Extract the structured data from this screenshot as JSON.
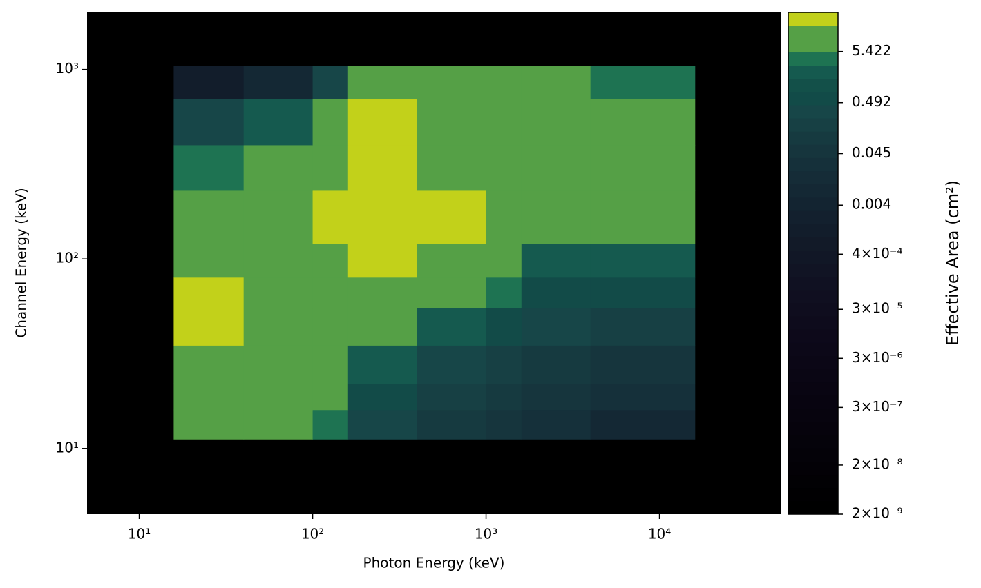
{
  "chart_data": {
    "type": "heatmap",
    "x_label": "Photon Energy (keV)",
    "y_label": "Channel Energy (keV)",
    "xscale": "log",
    "yscale": "log",
    "xlim": [
      5,
      50000
    ],
    "ylim": [
      4.5,
      2000
    ],
    "xticks": [
      {
        "value": 10,
        "label": "10¹"
      },
      {
        "value": 100,
        "label": "10²"
      },
      {
        "value": 1000,
        "label": "10³"
      },
      {
        "value": 10000,
        "label": "10⁴"
      }
    ],
    "yticks": [
      {
        "value": 10,
        "label": "10¹"
      },
      {
        "value": 100,
        "label": "10²"
      },
      {
        "value": 1000,
        "label": "10³"
      }
    ],
    "background": "#000000",
    "x_edges": [
      15.8,
      40,
      100,
      160,
      400,
      1000,
      1600,
      4000,
      16000
    ],
    "y_edges": [
      11.2,
      16,
      22,
      35,
      55,
      80,
      120,
      230,
      400,
      700,
      1040
    ],
    "z": [
      [
        12,
        12,
        3.5,
        0.3,
        0.1,
        0.05,
        0.02,
        0.01
      ],
      [
        12,
        12,
        6,
        0.5,
        0.2,
        0.1,
        0.05,
        0.03
      ],
      [
        12,
        12,
        6,
        2,
        0.4,
        0.2,
        0.1,
        0.06
      ],
      [
        20,
        12,
        12,
        6,
        2,
        0.5,
        0.3,
        0.2
      ],
      [
        20,
        12,
        12,
        12,
        12,
        3.5,
        0.8,
        0.5
      ],
      [
        12,
        12,
        12,
        20,
        12,
        6,
        2,
        2
      ],
      [
        12,
        12,
        20,
        20,
        20,
        12,
        6,
        6
      ],
      [
        3.5,
        12,
        12,
        20,
        12,
        12,
        12,
        12
      ],
      [
        0.3,
        2,
        12,
        20,
        12,
        6,
        6,
        6
      ],
      [
        0.001,
        0.01,
        0.3,
        6,
        6,
        6,
        6,
        3.5
      ]
    ],
    "colorbar": {
      "label": "Effective Area (cm²)",
      "scale": "log",
      "lim": [
        2e-09,
        34
      ],
      "ticks": [
        {
          "value": 2e-09,
          "label": "2×10⁻⁹"
        },
        {
          "value": 2e-08,
          "label": "2×10⁻⁸"
        },
        {
          "value": 3e-07,
          "label": "3×10⁻⁷"
        },
        {
          "value": 3e-06,
          "label": "3×10⁻⁶"
        },
        {
          "value": 3e-05,
          "label": "3×10⁻⁵"
        },
        {
          "value": 0.0004,
          "label": "4×10⁻⁴"
        },
        0.004,
        0.045,
        0.492,
        5.422
      ],
      "colors": [
        "#000000",
        "#010002",
        "#020104",
        "#030106",
        "#040208",
        "#05030a",
        "#06030c",
        "#07040e",
        "#080410",
        "#090512",
        "#0a0614",
        "#0b0716",
        "#0c0818",
        "#0d091a",
        "#0e0b1c",
        "#0f0d1e",
        "#100f20",
        "#101122",
        "#111424",
        "#111726",
        "#121a28",
        "#121d2b",
        "#13202e",
        "#132431",
        "#142834",
        "#152c37",
        "#15303a",
        "#16353d",
        "#163a40",
        "#174044",
        "#174648",
        "#124b48",
        "#135049",
        "#155a4f",
        "#1e7352",
        "#55a046",
        "#55a046",
        "#c2d11a"
      ]
    }
  }
}
